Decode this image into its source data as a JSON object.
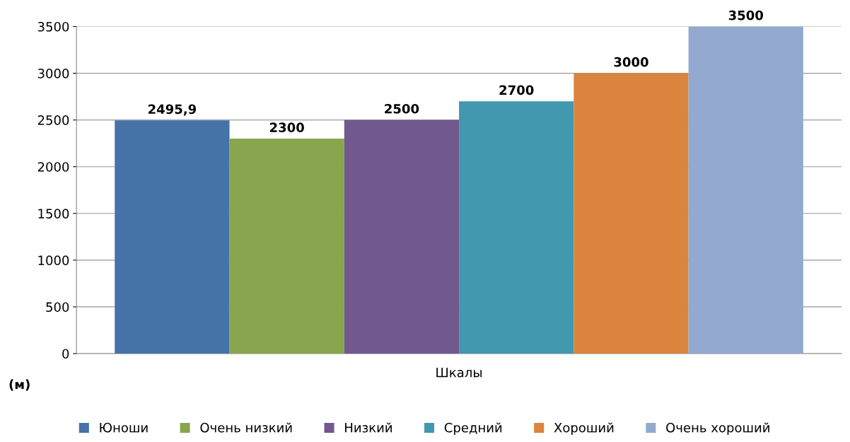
{
  "chart_data": {
    "type": "bar",
    "categories": [
      "Шкалы"
    ],
    "ylabel": "(м)",
    "series": [
      {
        "name": "Юноши",
        "color": "#4572a7",
        "values": [
          2495.9
        ],
        "value_labels": [
          "2495,9"
        ]
      },
      {
        "name": "Очень низкий",
        "color": "#89a54e",
        "values": [
          2300
        ],
        "value_labels": [
          "2300"
        ]
      },
      {
        "name": "Низкий",
        "color": "#71588f",
        "values": [
          2500
        ],
        "value_labels": [
          "2500"
        ]
      },
      {
        "name": "Средний",
        "color": "#4198af",
        "values": [
          2700
        ],
        "value_labels": [
          "2700"
        ]
      },
      {
        "name": "Хороший",
        "color": "#db843d",
        "values": [
          3000
        ],
        "value_labels": [
          "3000"
        ]
      },
      {
        "name": "Очень хороший",
        "color": "#93a9cf",
        "values": [
          3500
        ],
        "value_labels": [
          "3500"
        ]
      }
    ],
    "ylim": [
      0,
      3500
    ],
    "yticks": [
      0,
      500,
      1000,
      1500,
      2000,
      2500,
      3000,
      3500
    ],
    "grid": "y",
    "legend": "bottom"
  }
}
